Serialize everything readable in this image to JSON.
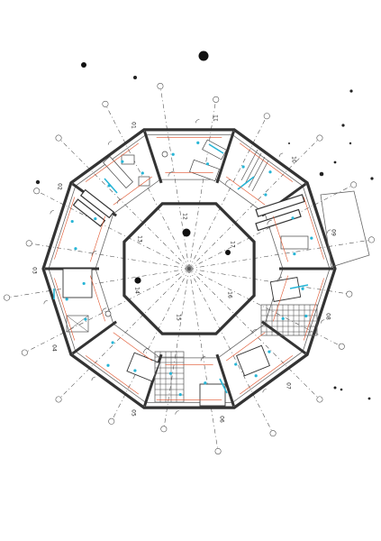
{
  "drawing": {
    "type": "architectural floor plan",
    "shape": "decagonal ring with octagonal central hall",
    "room_numbers": [
      {
        "id": "01",
        "label": "01"
      },
      {
        "id": "11",
        "label": "11"
      },
      {
        "id": "10",
        "label": "10"
      },
      {
        "id": "09",
        "label": "09"
      },
      {
        "id": "08",
        "label": "08"
      },
      {
        "id": "07",
        "label": "07"
      },
      {
        "id": "06",
        "label": "06"
      },
      {
        "id": "05",
        "label": "05"
      },
      {
        "id": "04",
        "label": "04"
      },
      {
        "id": "03",
        "label": "03"
      },
      {
        "id": "02",
        "label": "02"
      },
      {
        "id": "12",
        "label": "12"
      },
      {
        "id": "13",
        "label": "13"
      },
      {
        "id": "14",
        "label": "14"
      },
      {
        "id": "15",
        "label": "15"
      },
      {
        "id": "16",
        "label": "16"
      },
      {
        "id": "17",
        "label": "17"
      }
    ],
    "grid_bubble_count": 20,
    "colors": {
      "walls": "#333333",
      "fixture_dots": "#27b5d6",
      "finish_lines": "#e0522a",
      "grid_lines": "#555555",
      "background": "#ffffff"
    }
  }
}
